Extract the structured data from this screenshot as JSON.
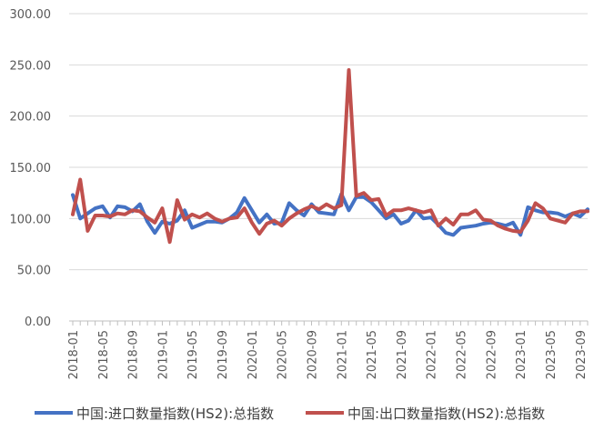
{
  "chart_data": {
    "type": "line",
    "title": "",
    "xlabel": "",
    "ylabel": "",
    "ylim": [
      0,
      300
    ],
    "y_ticks": [
      0,
      50,
      100,
      150,
      200,
      250,
      300
    ],
    "y_tick_labels": [
      "0.00",
      "50.00",
      "100.00",
      "150.00",
      "200.00",
      "250.00",
      "300.00"
    ],
    "grid": "horizontal",
    "legend_position": "bottom",
    "x_tick_labels": [
      "2018-01",
      "2018-05",
      "2018-09",
      "2019-01",
      "2019-05",
      "2019-09",
      "2020-01",
      "2020-05",
      "2020-09",
      "2021-01",
      "2021-05",
      "2021-09",
      "2022-01",
      "2022-05",
      "2022-09",
      "2023-01",
      "2023-05",
      "2023-09"
    ],
    "x": [
      "2018-01",
      "2018-02",
      "2018-03",
      "2018-04",
      "2018-05",
      "2018-06",
      "2018-07",
      "2018-08",
      "2018-09",
      "2018-10",
      "2018-11",
      "2018-12",
      "2019-01",
      "2019-02",
      "2019-03",
      "2019-04",
      "2019-05",
      "2019-06",
      "2019-07",
      "2019-08",
      "2019-09",
      "2019-10",
      "2019-11",
      "2019-12",
      "2020-01",
      "2020-02",
      "2020-03",
      "2020-04",
      "2020-05",
      "2020-06",
      "2020-07",
      "2020-08",
      "2020-09",
      "2020-10",
      "2020-11",
      "2020-12",
      "2021-01",
      "2021-02",
      "2021-03",
      "2021-04",
      "2021-05",
      "2021-06",
      "2021-07",
      "2021-08",
      "2021-09",
      "2021-10",
      "2021-11",
      "2021-12",
      "2022-01",
      "2022-02",
      "2022-03",
      "2022-04",
      "2022-05",
      "2022-06",
      "2022-07",
      "2022-08",
      "2022-09",
      "2022-10",
      "2022-11",
      "2022-12",
      "2023-01",
      "2023-02",
      "2023-03",
      "2023-04",
      "2023-05",
      "2023-06",
      "2023-07",
      "2023-08",
      "2023-09",
      "2023-10"
    ],
    "series": [
      {
        "name": "中国:进口数量指数(HS2):总指数",
        "color": "#4472C4",
        "values": [
          123,
          100,
          105,
          110,
          112,
          101,
          112,
          111,
          107,
          114,
          97,
          86,
          97,
          95,
          98,
          108,
          91,
          94,
          97,
          97,
          96,
          100,
          106,
          120,
          108,
          96,
          104,
          95,
          96,
          115,
          108,
          103,
          114,
          106,
          105,
          104,
          124,
          108,
          121,
          121,
          116,
          108,
          100,
          104,
          95,
          98,
          108,
          100,
          101,
          94,
          86,
          84,
          91,
          92,
          93,
          95,
          96,
          95,
          93,
          96,
          84,
          111,
          108,
          106,
          106,
          105,
          102,
          105,
          102,
          109
        ]
      },
      {
        "name": "中国:出口数量指数(HS2):总指数",
        "color": "#C0504D",
        "values": [
          104,
          138,
          88,
          103,
          103,
          102,
          105,
          104,
          108,
          107,
          101,
          96,
          110,
          77,
          118,
          99,
          104,
          101,
          105,
          100,
          97,
          100,
          101,
          110,
          96,
          85,
          95,
          98,
          93,
          100,
          105,
          109,
          112,
          109,
          114,
          110,
          113,
          245,
          122,
          125,
          118,
          119,
          103,
          108,
          108,
          110,
          108,
          106,
          108,
          93,
          100,
          94,
          104,
          104,
          108,
          99,
          98,
          93,
          90,
          88,
          87,
          98,
          115,
          110,
          100,
          98,
          96,
          105,
          107,
          107
        ]
      }
    ]
  }
}
